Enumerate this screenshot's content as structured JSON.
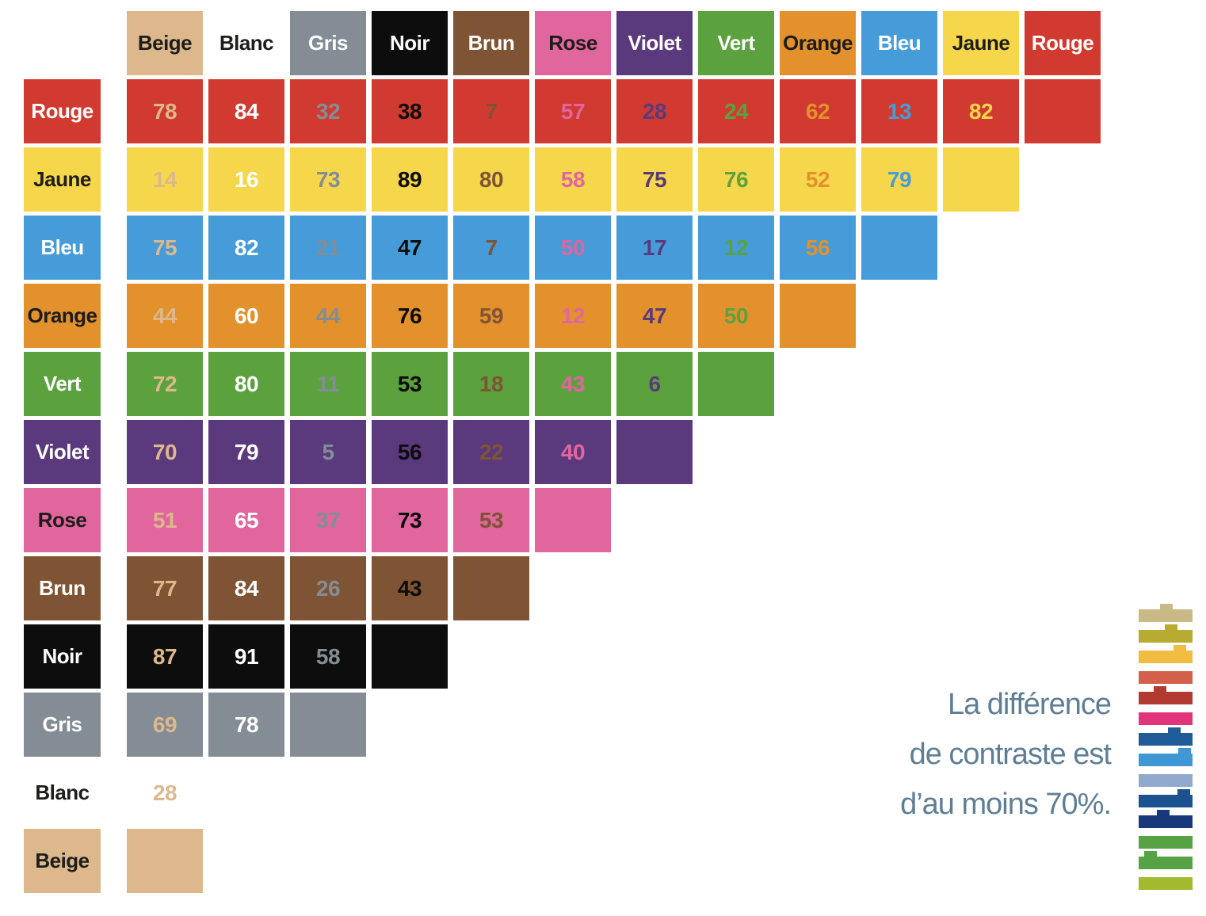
{
  "chart_data": {
    "type": "heatmap",
    "title": "",
    "columns": [
      "Beige",
      "Blanc",
      "Gris",
      "Noir",
      "Brun",
      "Rose",
      "Violet",
      "Vert",
      "Orange",
      "Bleu",
      "Jaune",
      "Rouge"
    ],
    "rows": [
      "Rouge",
      "Jaune",
      "Bleu",
      "Orange",
      "Vert",
      "Violet",
      "Rose",
      "Brun",
      "Noir",
      "Gris",
      "Blanc",
      "Beige"
    ],
    "values": [
      [
        78,
        84,
        32,
        38,
        7,
        57,
        28,
        24,
        62,
        13,
        82
      ],
      [
        14,
        16,
        73,
        89,
        80,
        58,
        75,
        76,
        52,
        79
      ],
      [
        75,
        82,
        21,
        47,
        7,
        50,
        17,
        12,
        56
      ],
      [
        44,
        60,
        44,
        76,
        59,
        12,
        47,
        50
      ],
      [
        72,
        80,
        11,
        53,
        18,
        43,
        6
      ],
      [
        70,
        79,
        5,
        56,
        22,
        40
      ],
      [
        51,
        65,
        37,
        73,
        53
      ],
      [
        77,
        84,
        26,
        43
      ],
      [
        87,
        91,
        58
      ],
      [
        69,
        78
      ],
      [
        28
      ],
      []
    ],
    "colors": {
      "Beige": "#ddb88c",
      "Blanc": "#ffffff",
      "Gris": "#848d95",
      "Noir": "#0d0d0d",
      "Brun": "#7f5434",
      "Rose": "#e0669d",
      "Violet": "#5a3a7d",
      "Vert": "#5ba23f",
      "Orange": "#e2912d",
      "Bleu": "#459cd8",
      "Jaune": "#f6d64a",
      "Rouge": "#d13a30"
    },
    "label_fg": {
      "Beige": "#1d1d1b",
      "Blanc": "#1d1d1b",
      "Gris": "#ffffff",
      "Noir": "#ffffff",
      "Brun": "#ffffff",
      "Rose": "#1d1d1b",
      "Violet": "#ffffff",
      "Vert": "#ffffff",
      "Orange": "#1d1d1b",
      "Bleu": "#ffffff",
      "Jaune": "#1d1d1b",
      "Rouge": "#ffffff"
    },
    "layout": {
      "legend_position": "bottom-right",
      "grid": "off",
      "cell_text_rule": "number colored with column color on row color background",
      "diagonal": "blank"
    }
  },
  "annotation": {
    "lines": [
      "La différence",
      "de contraste est",
      "d’au moins 70%."
    ],
    "color": "#5e7e96"
  },
  "edge_tabs": {
    "bars": [
      {
        "color": "#c9b987",
        "tab": 0.52
      },
      {
        "color": "#b7ab31",
        "tab": 0.6
      },
      {
        "color": "#f0bc41",
        "tab": 0.76
      },
      {
        "color": "#d2604a",
        "tab": null
      },
      {
        "color": "#b23a30",
        "tab": 0.4
      },
      {
        "color": "#e23478",
        "tab": null
      },
      {
        "color": "#1f5b97",
        "tab": 0.66
      },
      {
        "color": "#3f98d4",
        "tab": 0.92
      },
      {
        "color": "#90a9cd",
        "tab": null
      },
      {
        "color": "#1d5290",
        "tab": 0.84
      },
      {
        "color": "#17397c",
        "tab": 0.46
      },
      {
        "color": "#57a244",
        "tab": null
      },
      {
        "color": "#57a244",
        "tab": 0.22
      },
      {
        "color": "#a3b92e",
        "tab": null
      }
    ]
  }
}
